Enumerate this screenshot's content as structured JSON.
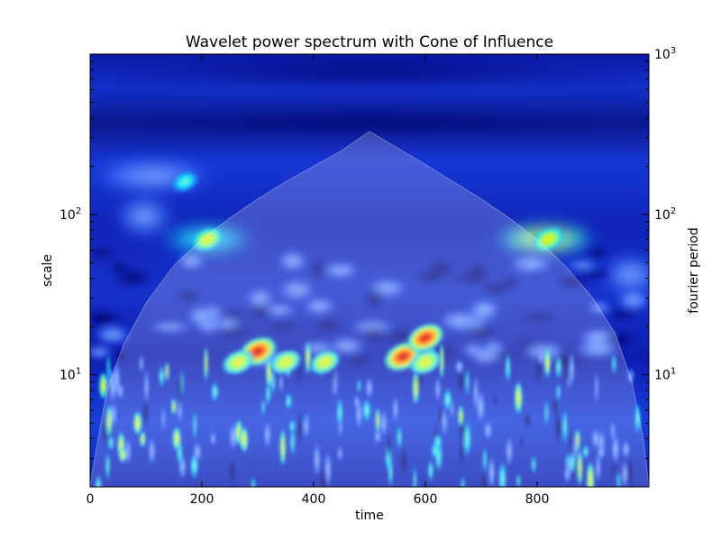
{
  "chart_data": {
    "type": "heatmap",
    "title": "Wavelet power spectrum with Cone of Influence",
    "xlabel": "time",
    "ylabel": "scale",
    "y2label": "fourier period",
    "xlim": [
      0,
      1000
    ],
    "ylim": [
      2,
      1000
    ],
    "yscale": "log",
    "colormap": "jet",
    "grid": false,
    "x_ticks": [
      {
        "value": 0,
        "label": "0"
      },
      {
        "value": 200,
        "label": "200"
      },
      {
        "value": 400,
        "label": "400"
      },
      {
        "value": 600,
        "label": "600"
      },
      {
        "value": 800,
        "label": "800"
      }
    ],
    "y_ticks": [
      {
        "value": 10,
        "base": "10",
        "exp": "1"
      },
      {
        "value": 100,
        "base": "10",
        "exp": "2"
      }
    ],
    "y2_ticks": [
      {
        "value": 10,
        "base": "10",
        "exp": "1"
      },
      {
        "value": 100,
        "base": "10",
        "exp": "2"
      },
      {
        "value": 1000,
        "base": "10",
        "exp": "3"
      }
    ],
    "cone_of_influence": {
      "t": [
        0,
        10,
        30,
        60,
        100,
        150,
        200,
        250,
        300,
        350,
        400,
        450,
        500,
        550,
        600,
        650,
        700,
        750,
        800,
        850,
        900,
        940,
        970,
        990,
        1000
      ],
      "scale": [
        2.0,
        3.3,
        8.0,
        15.5,
        28,
        48,
        70,
        95,
        125,
        160,
        200,
        250,
        330,
        260,
        205,
        160,
        125,
        95,
        70,
        48,
        30,
        18,
        9,
        4,
        2.0
      ]
    },
    "power_hotspots": [
      {
        "t": 300,
        "scale": 14,
        "power": 1.0
      },
      {
        "t": 560,
        "scale": 13,
        "power": 1.0
      },
      {
        "t": 600,
        "scale": 17,
        "power": 0.95
      },
      {
        "t": 265,
        "scale": 12,
        "power": 0.6
      },
      {
        "t": 350,
        "scale": 12,
        "power": 0.55
      },
      {
        "t": 420,
        "scale": 12,
        "power": 0.5
      },
      {
        "t": 85,
        "scale": 5,
        "power": 0.7
      },
      {
        "t": 155,
        "scale": 4,
        "power": 0.6
      },
      {
        "t": 275,
        "scale": 4,
        "power": 0.55
      },
      {
        "t": 210,
        "scale": 70,
        "power": 0.5
      },
      {
        "t": 820,
        "scale": 70,
        "power": 0.55
      },
      {
        "t": 170,
        "scale": 160,
        "power": 0.35
      },
      {
        "t": 600,
        "scale": 12,
        "power": 0.6
      },
      {
        "t": 495,
        "scale": 6,
        "power": 0.45
      },
      {
        "t": 640,
        "scale": 7,
        "power": 0.4
      }
    ]
  }
}
